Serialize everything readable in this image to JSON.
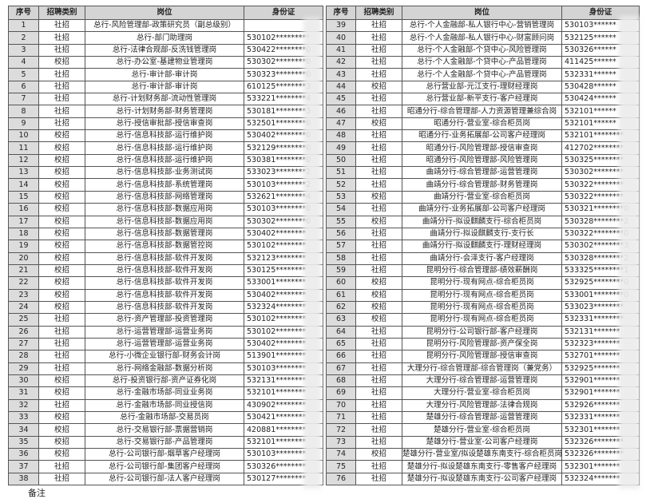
{
  "headers": [
    "序号",
    "招聘类别",
    "岗位",
    "身份证"
  ],
  "left_rows": [
    [
      "1",
      "社招",
      "总行-风险管理部-政策研究员（副总级别）",
      ""
    ],
    [
      "2",
      "社招",
      "总行-部门助理岗",
      "530102*********"
    ],
    [
      "3",
      "社招",
      "总行-法律合规部-反洗钱管理岗",
      "530422********0"
    ],
    [
      "4",
      "校招",
      "总行-办公室-基建物业管理岗",
      "530302********0"
    ],
    [
      "5",
      "社招",
      "总行-审计部-审计岗",
      "530323********0"
    ],
    [
      "6",
      "社招",
      "总行-审计部-审计岗",
      "610125********3"
    ],
    [
      "7",
      "社招",
      "总行-计划财务部-流动性管理岗",
      "533221********4"
    ],
    [
      "8",
      "社招",
      "总行-计划财务部-财务管理岗",
      "530181********3"
    ],
    [
      "9",
      "社招",
      "总行-授信审批部-授信审查岗",
      "532501********0"
    ],
    [
      "10",
      "校招",
      "总行-信息科技部-运行维护岗",
      "530402********0"
    ],
    [
      "11",
      "校招",
      "总行-信息科技部-运行维护岗",
      "532129********0"
    ],
    [
      "12",
      "校招",
      "总行-信息科技部-运行维护岗",
      "530381********0"
    ],
    [
      "13",
      "校招",
      "总行-信息科技部-业务测试岗",
      "533023********2"
    ],
    [
      "14",
      "校招",
      "总行-信息科技部-系统管理岗",
      "530103********2"
    ],
    [
      "15",
      "校招",
      "总行-信息科技部-网络管理岗",
      "532621********4"
    ],
    [
      "16",
      "校招",
      "总行-信息科技部-数据应用岗",
      "530103********0"
    ],
    [
      "17",
      "校招",
      "总行-信息科技部-数据应用岗",
      "530302********0"
    ],
    [
      "18",
      "校招",
      "总行-信息科技部-数据管理岗",
      "530402********"
    ],
    [
      "19",
      "校招",
      "总行-信息科技部-数据管控岗",
      "530102********"
    ],
    [
      "20",
      "校招",
      "总行-信息科技部-软件开发岗",
      "532123********"
    ],
    [
      "21",
      "校招",
      "总行-信息科技部-软件开发岗",
      "530125********"
    ],
    [
      "22",
      "校招",
      "总行-信息科技部-软件开发岗",
      "533001********"
    ],
    [
      "23",
      "校招",
      "总行-信息科技部-软件开发岗",
      "530402********"
    ],
    [
      "24",
      "校招",
      "总行-信息科技部-软件开发岗",
      "532324********"
    ],
    [
      "25",
      "社招",
      "总行-资产管理部-投资管理岗",
      "530102********"
    ],
    [
      "26",
      "社招",
      "总行-运营管理部-运营业务岗",
      "530102********"
    ],
    [
      "27",
      "社招",
      "总行-运营管理部-运营业务岗",
      "530402********"
    ],
    [
      "28",
      "社招",
      "总行-小微企业银行部-财务会计岗",
      "513901********"
    ],
    [
      "29",
      "社招",
      "总行-网络金融部-数据分析岗",
      "530103********"
    ],
    [
      "30",
      "校招",
      "总行-投资银行部-资产证券化岗",
      "532131********"
    ],
    [
      "31",
      "校招",
      "总行-金融市场部-同业业务岗",
      "532101********"
    ],
    [
      "32",
      "社招",
      "总行-金融市场部-同业授信岗",
      "430902********"
    ],
    [
      "33",
      "校招",
      "总行-金融市场部-交易员岗",
      "530421********"
    ],
    [
      "34",
      "校招",
      "总行-交易银行部-票据营销岗",
      "420881********"
    ],
    [
      "35",
      "校招",
      "总行-交易银行部-产品管理岗",
      "532101********"
    ],
    [
      "36",
      "校招",
      "总行-公司银行部-烟草客户经理岗",
      "530103********"
    ],
    [
      "37",
      "社招",
      "总行-公司银行部-集团客户经理岗",
      "530326********"
    ],
    [
      "38",
      "社招",
      "总行-公司银行部-法人客户经理岗",
      "530127********"
    ]
  ],
  "right_rows": [
    [
      "39",
      "社招",
      "总行-个人金融部-私人银行中心-营销管理岗",
      "530103******"
    ],
    [
      "40",
      "社招",
      "总行-个人金融部-私人银行中心-财富顾问岗",
      "532125******"
    ],
    [
      "41",
      "社招",
      "总行-个人金融部-个贷中心-风险管理岗",
      "530326******"
    ],
    [
      "42",
      "社招",
      "总行-个人金融部-个贷中心-产品管理岗",
      "411425******"
    ],
    [
      "43",
      "社招",
      "总行-个人金融部-个贷中心-产品管理岗",
      "532331******"
    ],
    [
      "44",
      "校招",
      "总行营业部-元江支行-理财经理岗",
      "530428******"
    ],
    [
      "45",
      "社招",
      "总行营业部-新平支行-客户经理岗",
      "530424******"
    ],
    [
      "46",
      "社招",
      "昭通分行-综合管理部-人力资源管理兼综合岗",
      "532101******"
    ],
    [
      "47",
      "校招",
      "昭通分行-营业室-综合柜员岗",
      "532101******"
    ],
    [
      "48",
      "社招",
      "昭通分行-业务拓展部-公司客户经理岗",
      "532101********"
    ],
    [
      "49",
      "社招",
      "昭通分行-风险管理部-授信审查岗",
      "412702********"
    ],
    [
      "50",
      "社招",
      "昭通分行-风险管理部-风险管理岗",
      "530325********"
    ],
    [
      "51",
      "社招",
      "曲靖分行-综合管理部-运营管理岗",
      "530302********"
    ],
    [
      "52",
      "社招",
      "曲靖分行-综合管理部-财务管理岗",
      "530322********"
    ],
    [
      "53",
      "校招",
      "曲靖分行-营业室-综合柜员岗",
      "530322********"
    ],
    [
      "54",
      "社招",
      "曲靖分行-业务拓展部-公司客户经理岗",
      "530321********0"
    ],
    [
      "55",
      "校招",
      "曲靖分行-拟设麒麟支行-综合柜员岗",
      "530328********2"
    ],
    [
      "56",
      "社招",
      "曲靖分行-拟设麒麟支行-支行长",
      "530322********0"
    ],
    [
      "57",
      "社招",
      "曲靖分行-拟设麒麟支行-理财经理岗",
      "530302********3"
    ],
    [
      "58",
      "社招",
      "曲靖分行-会泽支行-客户经理岗",
      "530328********2"
    ],
    [
      "59",
      "社招",
      "昆明分行-综合管理部-绩效薪酬岗",
      "533325********1"
    ],
    [
      "60",
      "校招",
      "昆明分行-现有网点-综合柜员岗",
      "532925********0"
    ],
    [
      "61",
      "校招",
      "昆明分行-现有网点-综合柜员岗",
      "533001********0"
    ],
    [
      "62",
      "校招",
      "昆明分行-现有网点-综合柜员岗",
      "533023********"
    ],
    [
      "63",
      "校招",
      "昆明分行-现有网点-综合柜员岗",
      "532331********"
    ],
    [
      "64",
      "社招",
      "昆明分行-公司银行部-客户经理岗",
      "532131*******"
    ],
    [
      "65",
      "社招",
      "昆明分行-风险管理部-资产保全岗",
      "532323*******"
    ],
    [
      "66",
      "社招",
      "昆明分行-风险管理部-授信审查岗",
      "532701*******"
    ],
    [
      "67",
      "社招",
      "大理分行-综合管理部-综合管理岗（兼党务）",
      "532925*******"
    ],
    [
      "68",
      "社招",
      "大理分行-综合管理部-运营管理岗",
      "532901*******"
    ],
    [
      "69",
      "社招",
      "大理分行-营业室-综合柜员岗",
      "532901*******"
    ],
    [
      "70",
      "社招",
      "大理分行-风险管理部-法律合规岗",
      "532926*******"
    ],
    [
      "71",
      "社招",
      "楚雄分行-综合管理部-运营管理岗",
      "532331*******"
    ],
    [
      "72",
      "社招",
      "楚雄分行-营业室-综合柜员岗",
      "532301*******"
    ],
    [
      "73",
      "社招",
      "楚雄分行-营业室-公司客户经理岗",
      "532326********"
    ],
    [
      "74",
      "校招",
      "楚雄分行-营业室/拟设楚雄东南支行-综合柜员岗",
      "532326********"
    ],
    [
      "75",
      "社招",
      "楚雄分行-拟设楚雄东南支行-零售客户经理岗",
      "532301*******"
    ],
    [
      "76",
      "社招",
      "楚雄分行-拟设楚雄东南支行-公司客户经理岗",
      "532324*******"
    ]
  ],
  "note": "备注"
}
